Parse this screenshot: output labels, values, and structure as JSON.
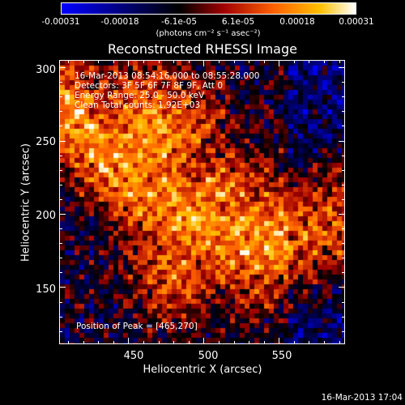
{
  "colorbar": {
    "labels": [
      "-0.00031",
      "-0.00018",
      "-6.1e-05",
      "6.1e-05",
      "0.00018",
      "0.00031"
    ],
    "units": "(photons cm⁻² s⁻¹ asec⁻²)",
    "colors": [
      "#0000ff",
      "#000000",
      "#a00000",
      "#ff6000",
      "#ffc000",
      "#ffffff"
    ]
  },
  "title": "Reconstructed RHESSI Image",
  "overlay": {
    "line1": "16-Mar-2013 08:54:16.000 to 08:55:28.000",
    "line2": "Detectors: 3F 5F 6F 7F 8F 9F, Att 0",
    "line3": "Energy Range: 25.0 - 50.0 keV",
    "line4": "Clean    Total counts: 1.92E+03",
    "peak": "Position of Peak = [465,270]"
  },
  "axes": {
    "xlabel": "Heliocentric X (arcsec)",
    "ylabel": "Heliocentric Y (arcsec)",
    "xticks": [
      "450",
      "500",
      "550"
    ],
    "yticks": [
      "300",
      "250",
      "200",
      "150"
    ],
    "xlim": [
      404,
      594
    ],
    "ylim": [
      111,
      305
    ]
  },
  "footer": "16-Mar-2013 17:04"
}
